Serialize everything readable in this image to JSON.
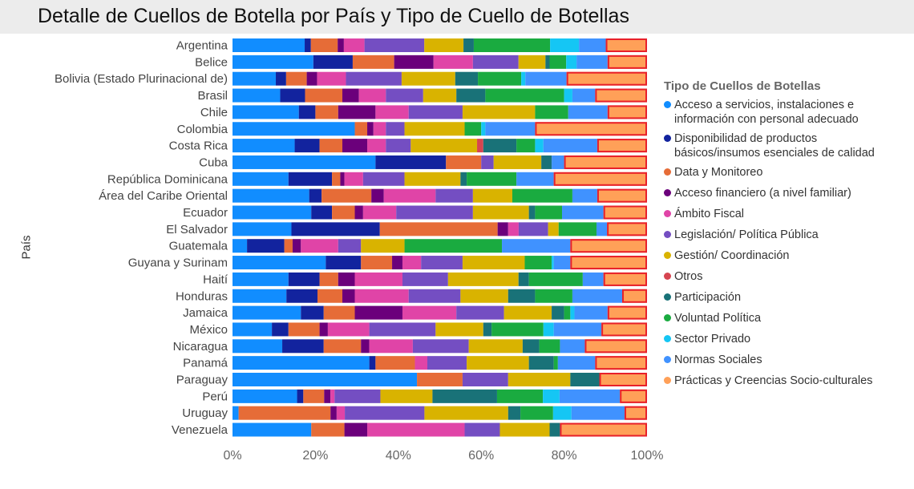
{
  "title": "Detalle de Cuellos de Botella por País y Tipo de Cuello de Botellas",
  "chart_data": {
    "type": "bar",
    "orientation": "horizontal",
    "stacked": "100%",
    "title": "Detalle de Cuellos de Botella por País y Tipo de Cuello de Botellas",
    "ylabel": "País",
    "xlabel": "",
    "xlim": [
      0,
      100
    ],
    "xticks": [
      "0%",
      "20%",
      "40%",
      "60%",
      "80%",
      "100%"
    ],
    "legend_title": "Tipo de Cuellos de Botellas",
    "legend_position": "right",
    "highlight_series": "Prácticas y Creencias Socio-culturales",
    "categories": [
      "Argentina",
      "Belice",
      "Bolivia (Estado Plurinacional de)",
      "Brasil",
      "Chile",
      "Colombia",
      "Costa Rica",
      "Cuba",
      "República Dominicana",
      "Área del Caribe Oriental",
      "Ecuador",
      "El Salvador",
      "Guatemala",
      "Guyana y Surinam",
      "Haití",
      "Honduras",
      "Jamaica",
      "México",
      "Nicaragua",
      "Panamá",
      "Paraguay",
      "Perú",
      "Uruguay",
      "Venezuela"
    ],
    "series": [
      {
        "name": "Acceso a servicios, instalaciones e\ninformación con personal adecuado",
        "color": "#118DFF",
        "values": [
          17.5,
          19.5,
          10.5,
          11.5,
          16,
          29.5,
          15,
          34.5,
          13.5,
          18.5,
          19,
          14,
          3.5,
          22.5,
          13.5,
          13,
          16.5,
          9.5,
          12,
          33,
          44.5,
          15.5,
          1.5,
          19
        ]
      },
      {
        "name": "Disponibilidad de productos\nbásicos/insumos esenciales de calidad",
        "color": "#12239E",
        "values": [
          1.5,
          9.5,
          2.5,
          6,
          4,
          0,
          6,
          17,
          10.5,
          3,
          5,
          21,
          9,
          8.5,
          7.5,
          7.5,
          5.5,
          4,
          10,
          1.5,
          0,
          1.5,
          0,
          0
        ]
      },
      {
        "name": "Data y Monitoreo",
        "color": "#E66C37",
        "values": [
          6.5,
          10,
          5,
          9,
          5.5,
          3,
          5.5,
          8.5,
          2,
          12,
          5.5,
          28,
          2,
          7.5,
          4.5,
          6,
          7.5,
          7.5,
          9,
          9.5,
          11,
          5,
          22.5,
          8
        ]
      },
      {
        "name": "Acceso financiero (a nivel familiar)",
        "color": "#6B007B",
        "values": [
          1.5,
          9.5,
          2.5,
          4,
          9,
          1.5,
          6,
          0,
          1,
          3,
          2,
          2.5,
          2,
          2.5,
          4,
          3,
          11.5,
          2,
          2,
          0,
          0,
          1.5,
          1.5,
          5.5
        ]
      },
      {
        "name": "Ámbito Fiscal",
        "color": "#E044A7",
        "values": [
          5,
          9.5,
          7,
          6.5,
          8,
          3,
          4.5,
          0,
          4.5,
          12.5,
          8,
          2.5,
          9,
          4.5,
          11.5,
          13,
          13,
          10,
          10.5,
          3,
          0,
          1,
          2,
          23.5
        ]
      },
      {
        "name": "Legislación/ Política Pública",
        "color": "#744EC2",
        "values": [
          14.5,
          11,
          13.5,
          9,
          13,
          4.5,
          6,
          3,
          10,
          9,
          18.5,
          7,
          5.5,
          10,
          11,
          12.5,
          11.5,
          16,
          13.5,
          9.5,
          11,
          11,
          19.5,
          8.5
        ]
      },
      {
        "name": "Gestión/ Coordinación",
        "color": "#D9B300",
        "values": [
          9.5,
          6.5,
          13,
          8,
          17.5,
          14.5,
          16,
          11.5,
          13.5,
          9.5,
          13.5,
          2.5,
          10.5,
          15,
          17,
          11.5,
          11.5,
          11.5,
          13,
          15,
          15,
          12.5,
          20.5,
          12
        ]
      },
      {
        "name": "Otros",
        "color": "#D64550",
        "values": [
          0,
          0,
          0,
          0,
          0,
          0,
          1.5,
          0,
          0,
          0,
          0,
          0,
          0,
          0,
          0,
          0,
          0,
          0,
          0,
          0,
          0,
          0,
          0,
          0
        ]
      },
      {
        "name": "Participación",
        "color": "#197278",
        "values": [
          2.5,
          1,
          5.5,
          7,
          0,
          0,
          8,
          2.5,
          1.5,
          0,
          1.5,
          0,
          0,
          0,
          2.5,
          6.5,
          3,
          2,
          4,
          6,
          7,
          15.5,
          3,
          2.5
        ]
      },
      {
        "name": "Voluntad Política",
        "color": "#1AAB40",
        "values": [
          18.5,
          4,
          10.5,
          19,
          8,
          4,
          4.5,
          0,
          12,
          14.5,
          6.5,
          9,
          23.5,
          6.5,
          13,
          9,
          1.5,
          12.5,
          5,
          1,
          0,
          11,
          8,
          0
        ]
      },
      {
        "name": "Sector Privado",
        "color": "#15C6F4",
        "values": [
          7,
          2.5,
          1,
          2,
          0,
          1,
          2,
          0,
          0,
          0,
          0,
          0,
          0,
          0.5,
          0,
          0,
          1,
          2.5,
          0,
          0,
          0,
          4,
          4.5,
          0
        ]
      },
      {
        "name": "Normas Sociales",
        "color": "#4092FF",
        "values": [
          6.5,
          7.5,
          10,
          5.5,
          9.5,
          12,
          13,
          3,
          9,
          6,
          10,
          2.5,
          16.5,
          4,
          5,
          12,
          8,
          11.5,
          6,
          9,
          0,
          14.5,
          13,
          0
        ]
      },
      {
        "name": "Prácticas y Creencias Socio-culturales",
        "color": "#FFA058",
        "values": [
          10,
          9.5,
          19.5,
          12.5,
          9.5,
          27,
          12,
          20,
          22.5,
          12,
          10.5,
          9.5,
          18.5,
          18.5,
          10.5,
          6,
          9.5,
          11,
          15,
          12.5,
          11.5,
          6.5,
          5.5,
          21
        ]
      }
    ]
  }
}
